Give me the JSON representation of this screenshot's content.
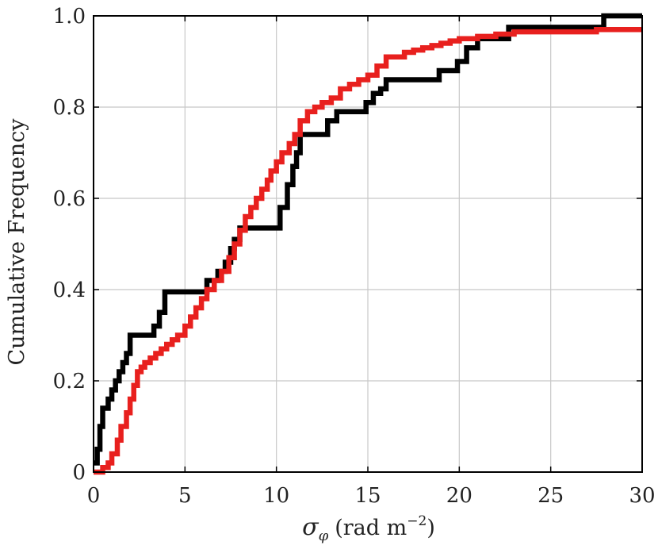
{
  "chart_data": {
    "type": "line",
    "step": true,
    "title": "",
    "xlabel": "σ_φ (rad m⁻²)",
    "xlabel_parts": {
      "symbol": "σ",
      "subscript": "φ",
      "unit_open": "(rad m",
      "unit_exp": "−2",
      "unit_close": ")"
    },
    "ylabel": "Cumulative Frequency",
    "xlim": [
      0,
      30
    ],
    "ylim": [
      0,
      1.0
    ],
    "xticks": [
      0,
      5,
      10,
      15,
      20,
      25,
      30
    ],
    "xtick_labels": [
      "0",
      "5",
      "10",
      "15",
      "20",
      "25",
      "30"
    ],
    "yticks": [
      0,
      0.2,
      0.4,
      0.6,
      0.8,
      1.0
    ],
    "ytick_labels": [
      "0",
      "0.2",
      "0.4",
      "0.6",
      "0.8",
      "1.0"
    ],
    "grid": true,
    "legend": "none",
    "series": [
      {
        "color": "#000000",
        "x": [
          0.0,
          0.2,
          0.35,
          0.5,
          0.8,
          1.0,
          1.2,
          1.4,
          1.6,
          1.8,
          2.0,
          3.3,
          3.6,
          3.9,
          6.2,
          6.8,
          7.2,
          7.5,
          7.7,
          8.0,
          10.2,
          10.6,
          10.9,
          11.1,
          11.3,
          12.8,
          13.3,
          13.6,
          14.9,
          15.3,
          15.7,
          16.0,
          16.5,
          18.4,
          18.9,
          19.4,
          19.9,
          20.4,
          21.0,
          22.7,
          27.9,
          30.0
        ],
        "y": [
          0.02,
          0.05,
          0.1,
          0.14,
          0.16,
          0.18,
          0.2,
          0.22,
          0.24,
          0.26,
          0.3,
          0.32,
          0.35,
          0.395,
          0.42,
          0.44,
          0.46,
          0.49,
          0.51,
          0.535,
          0.58,
          0.63,
          0.67,
          0.7,
          0.74,
          0.77,
          0.79,
          0.79,
          0.81,
          0.83,
          0.84,
          0.86,
          0.86,
          0.86,
          0.88,
          0.88,
          0.9,
          0.93,
          0.95,
          0.975,
          1.0,
          1.0
        ]
      },
      {
        "color": "#e8201e",
        "x": [
          0.0,
          0.5,
          0.8,
          1.0,
          1.3,
          1.5,
          1.8,
          2.0,
          2.2,
          2.4,
          2.6,
          2.8,
          3.1,
          3.4,
          3.7,
          4.0,
          4.3,
          4.6,
          5.0,
          5.3,
          5.6,
          5.9,
          6.2,
          6.6,
          7.0,
          7.4,
          7.7,
          8.0,
          8.3,
          8.6,
          8.9,
          9.2,
          9.5,
          9.7,
          10.0,
          10.3,
          10.7,
          11.0,
          11.3,
          11.7,
          12.1,
          12.5,
          13.0,
          13.5,
          14.0,
          14.5,
          15.0,
          15.5,
          16.0,
          17.0,
          17.5,
          18.0,
          18.5,
          19.0,
          19.5,
          20.0,
          20.5,
          21.0,
          22.0,
          23.0,
          24.0,
          27.5,
          30.0
        ],
        "y": [
          0.0,
          0.01,
          0.02,
          0.04,
          0.07,
          0.1,
          0.13,
          0.16,
          0.19,
          0.22,
          0.23,
          0.24,
          0.25,
          0.26,
          0.27,
          0.28,
          0.29,
          0.3,
          0.32,
          0.34,
          0.36,
          0.38,
          0.4,
          0.42,
          0.44,
          0.47,
          0.5,
          0.53,
          0.56,
          0.58,
          0.6,
          0.62,
          0.64,
          0.66,
          0.68,
          0.7,
          0.72,
          0.74,
          0.77,
          0.79,
          0.8,
          0.81,
          0.82,
          0.84,
          0.85,
          0.86,
          0.87,
          0.89,
          0.91,
          0.92,
          0.925,
          0.93,
          0.935,
          0.94,
          0.945,
          0.95,
          0.95,
          0.955,
          0.96,
          0.965,
          0.965,
          0.97,
          0.97
        ]
      }
    ]
  }
}
